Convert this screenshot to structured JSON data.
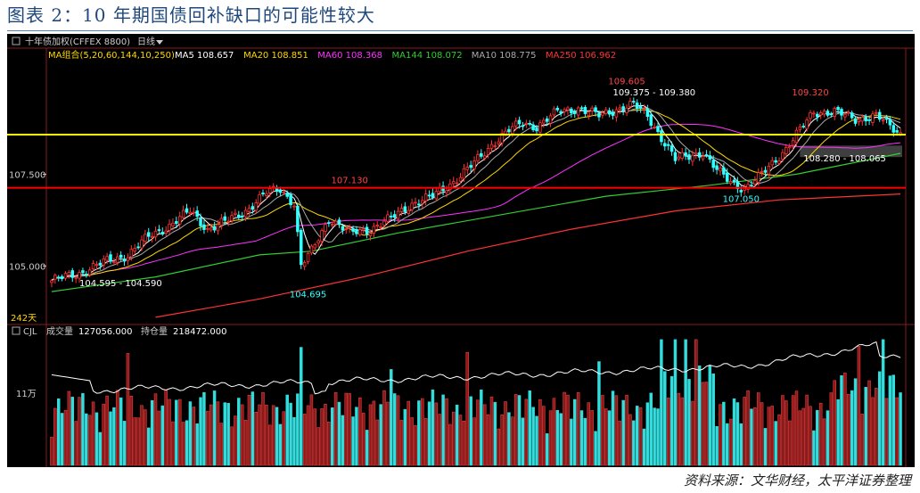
{
  "caption": "图表 2：10 年期国债回补缺口的可能性较大",
  "source": "资料来源：文华财经，太平洋证券整理",
  "chart_data": {
    "type": "candlestick",
    "instrument": "十年债加权(CFFEX 8800)",
    "period": "日线",
    "ma_group": "MA组合(5,20,60,144,10,250)",
    "ma_legend": [
      {
        "label": "MA5",
        "value": "108.657",
        "color": "#ffffff"
      },
      {
        "label": "MA20",
        "value": "108.851",
        "color": "#ffd700"
      },
      {
        "label": "MA60",
        "value": "108.368",
        "color": "#ff33ff"
      },
      {
        "label": "MA144",
        "value": "108.072",
        "color": "#33cc33"
      },
      {
        "label": "MA10",
        "value": "108.775",
        "color": "#aaaaaa"
      },
      {
        "label": "MA250",
        "value": "106.962",
        "color": "#ff3333"
      }
    ],
    "ylim": [
      103.5,
      110.5
    ],
    "y_ticks": [
      "107.500",
      "105.000"
    ],
    "horizontal_lines": [
      {
        "value": 108.58,
        "color": "#ffff00"
      },
      {
        "value": 107.13,
        "color": "#ff0000"
      }
    ],
    "price_labels": [
      {
        "text": "109.605",
        "color": "#ff4444"
      },
      {
        "text": "109.375 - 109.380",
        "color": "#ffffff"
      },
      {
        "text": "109.320",
        "color": "#ff4444"
      },
      {
        "text": "107.130",
        "color": "#ff4444"
      },
      {
        "text": "108.280 - 108.065",
        "color": "#ffffff"
      },
      {
        "text": "107.050",
        "color": "#33ffff"
      },
      {
        "text": "104.595 - 104.590",
        "color": "#ffffff"
      },
      {
        "text": "104.695",
        "color": "#33ffff"
      }
    ],
    "gap_zone": [
      108.065,
      108.28
    ],
    "close_anchors": [
      [
        0,
        104.6
      ],
      [
        8,
        104.8
      ],
      [
        15,
        105.1
      ],
      [
        22,
        105.3
      ],
      [
        28,
        105.8
      ],
      [
        34,
        106.1
      ],
      [
        40,
        106.5
      ],
      [
        45,
        106.0
      ],
      [
        50,
        106.2
      ],
      [
        56,
        106.5
      ],
      [
        62,
        107.0
      ],
      [
        66,
        107.1
      ],
      [
        70,
        106.7
      ],
      [
        72,
        105.0
      ],
      [
        75,
        105.4
      ],
      [
        80,
        106.3
      ],
      [
        86,
        105.9
      ],
      [
        92,
        106.0
      ],
      [
        98,
        106.3
      ],
      [
        104,
        106.7
      ],
      [
        110,
        106.9
      ],
      [
        116,
        107.3
      ],
      [
        122,
        107.8
      ],
      [
        128,
        108.4
      ],
      [
        132,
        108.7
      ],
      [
        136,
        108.9
      ],
      [
        140,
        108.8
      ],
      [
        146,
        109.2
      ],
      [
        152,
        109.3
      ],
      [
        158,
        109.1
      ],
      [
        164,
        109.3
      ],
      [
        168,
        109.4
      ],
      [
        172,
        109.1
      ],
      [
        176,
        108.5
      ],
      [
        180,
        107.9
      ],
      [
        184,
        108.0
      ],
      [
        188,
        108.1
      ],
      [
        192,
        107.6
      ],
      [
        196,
        107.3
      ],
      [
        200,
        107.1
      ],
      [
        204,
        107.4
      ],
      [
        208,
        107.8
      ],
      [
        212,
        108.2
      ],
      [
        216,
        108.7
      ],
      [
        220,
        109.2
      ],
      [
        226,
        109.2
      ],
      [
        232,
        109.0
      ],
      [
        238,
        109.1
      ],
      [
        242,
        108.8
      ],
      [
        245,
        108.6
      ]
    ],
    "cjl": {
      "label": "CJL",
      "volume_label": "成交量",
      "volume": "127056.000",
      "oi_label": "持仓量",
      "open_interest": "218472.000",
      "y_tick": "11万"
    },
    "days_label": "242天"
  }
}
